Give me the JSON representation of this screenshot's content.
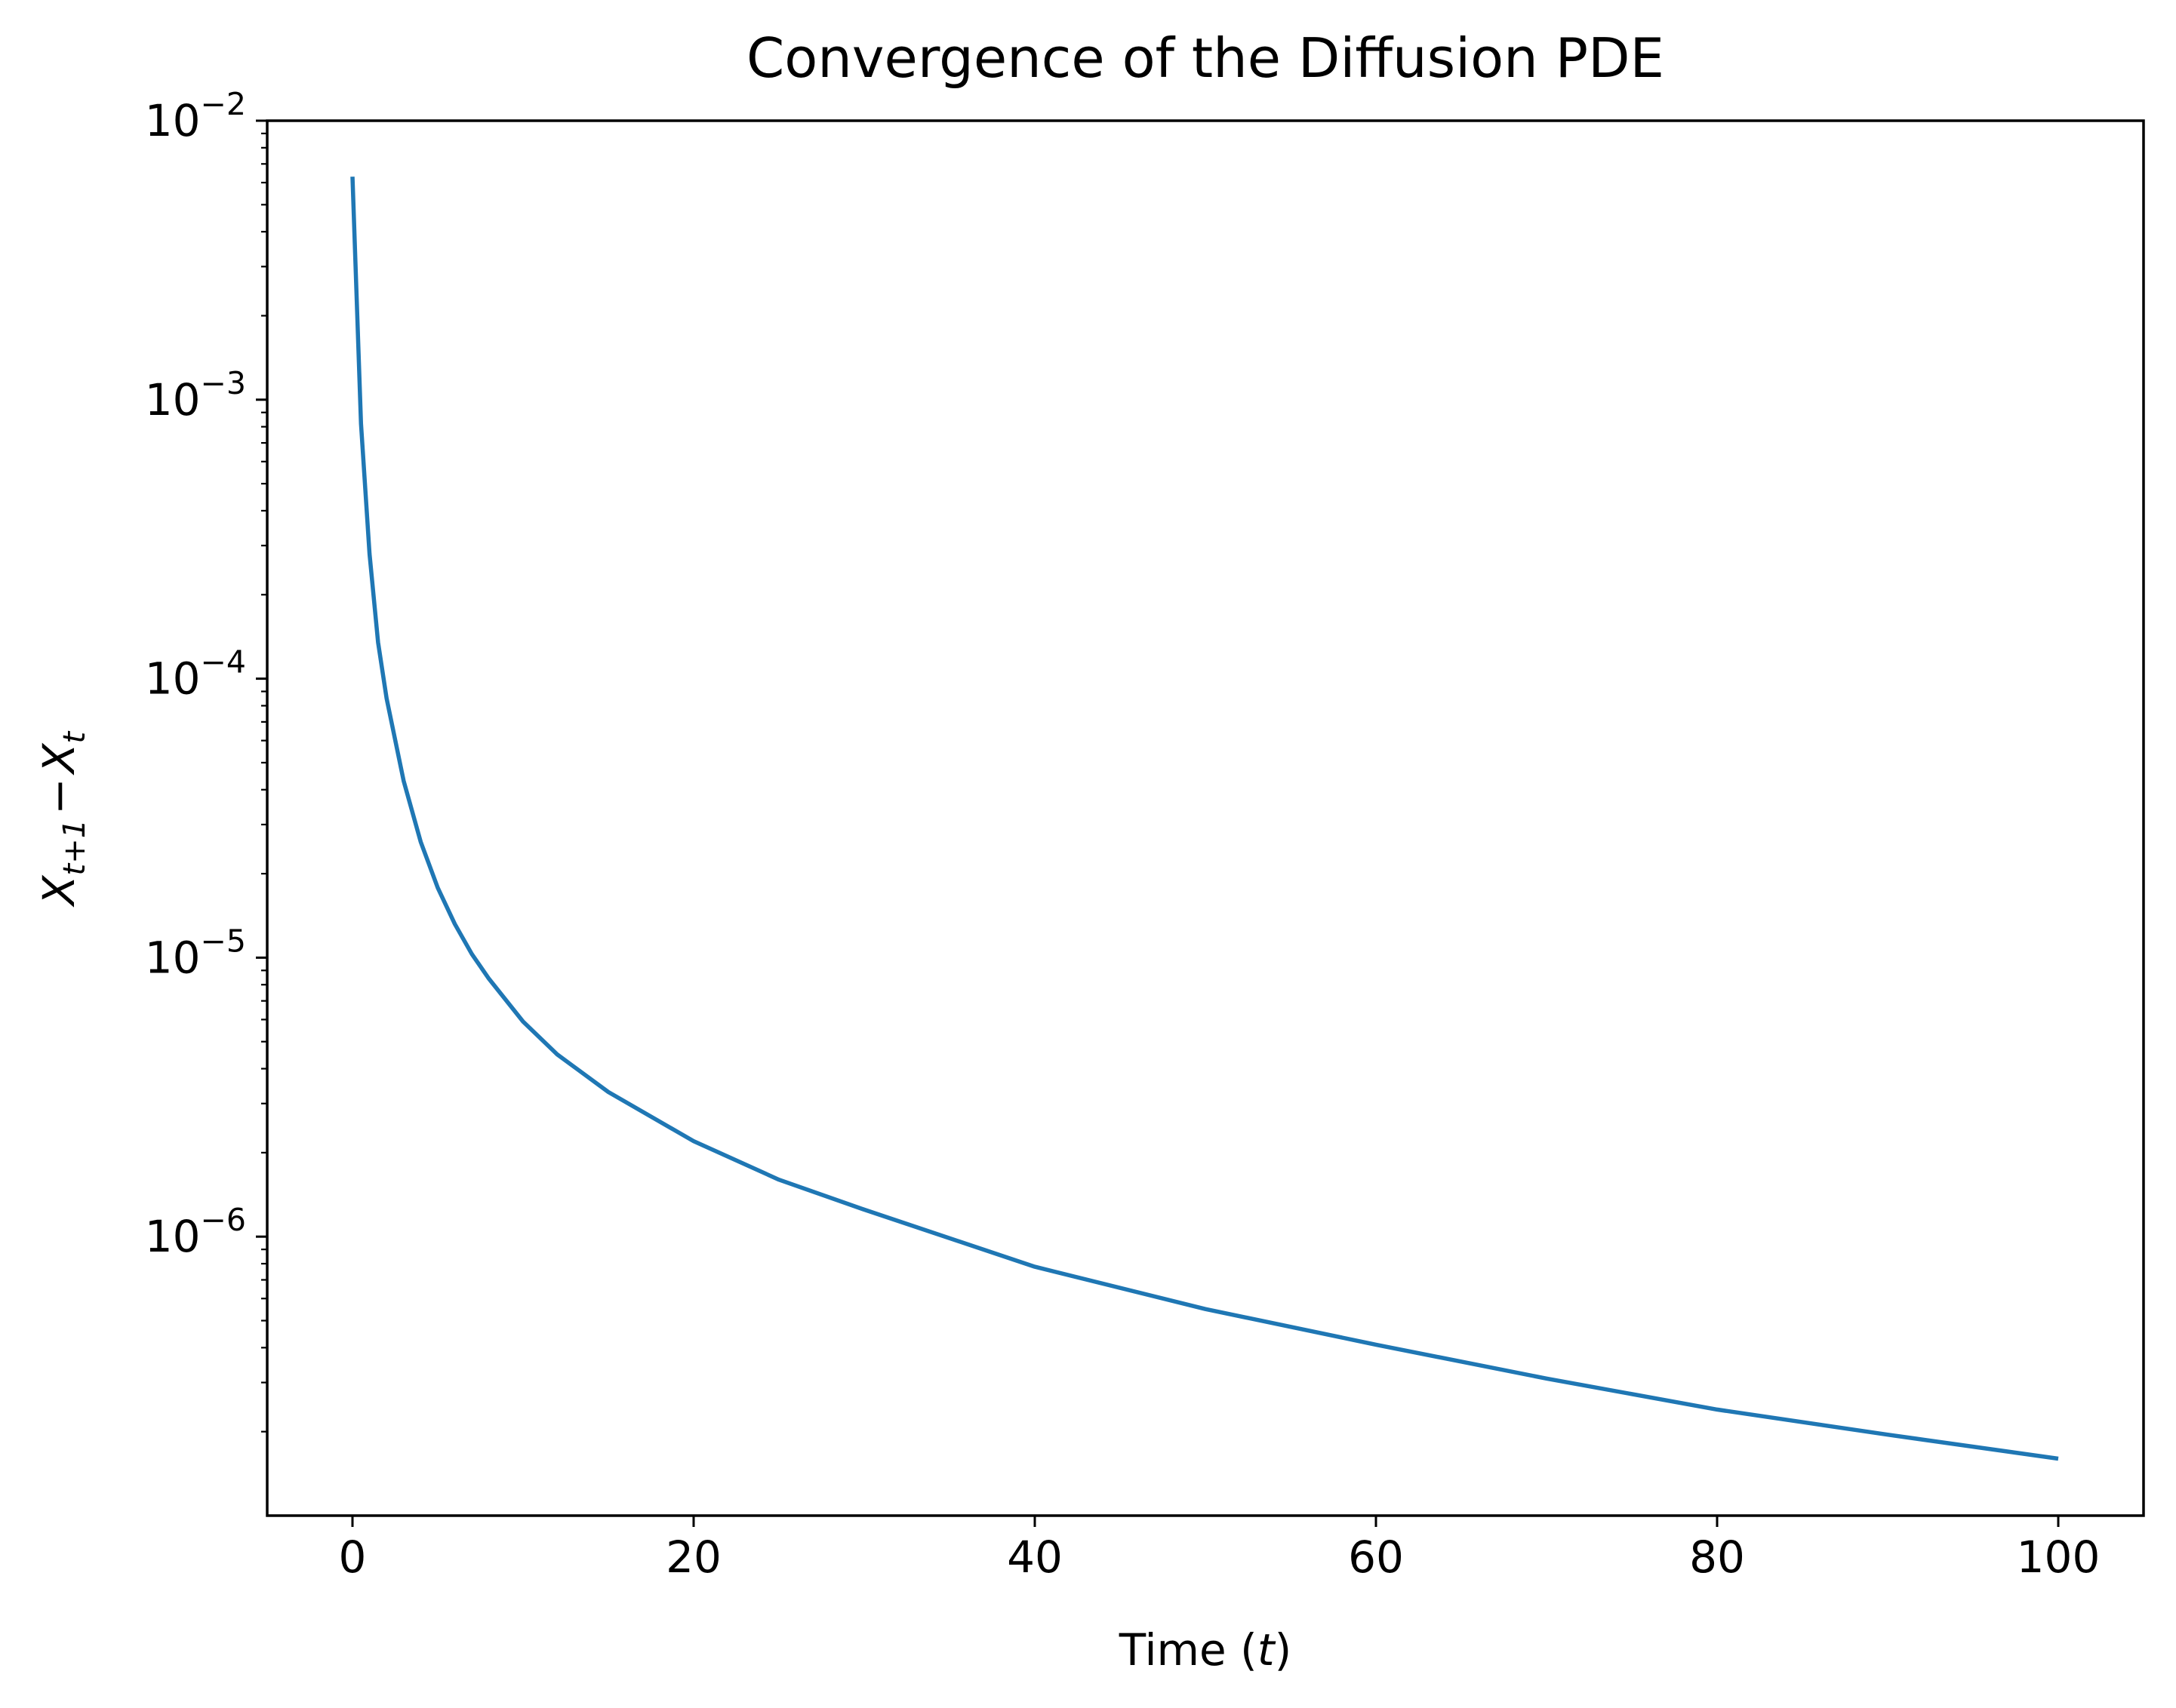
{
  "chart_data": {
    "type": "line",
    "title": "Convergence of the Diffusion PDE",
    "xlabel": {
      "main": "Time (",
      "var": "t",
      "close": ")"
    },
    "ylabel": {
      "x1": "X",
      "sub1": "t+1",
      "minus": "−",
      "x2": "X",
      "sub2": "t"
    },
    "xlim": [
      -5,
      105
    ],
    "ylim": [
      1e-07,
      0.01
    ],
    "yscale": "log",
    "grid": false,
    "x_ticks": [
      {
        "value": 0,
        "label": "0"
      },
      {
        "value": 20,
        "label": "20"
      },
      {
        "value": 40,
        "label": "40"
      },
      {
        "value": 60,
        "label": "60"
      },
      {
        "value": 80,
        "label": "80"
      },
      {
        "value": 100,
        "label": "100"
      }
    ],
    "y_ticks": [
      {
        "value": 0.01,
        "base": "10",
        "exp": "−2"
      },
      {
        "value": 0.001,
        "base": "10",
        "exp": "−3"
      },
      {
        "value": 0.0001,
        "base": "10",
        "exp": "−4"
      },
      {
        "value": 1e-05,
        "base": "10",
        "exp": "−5"
      },
      {
        "value": 1e-06,
        "base": "10",
        "exp": "−6"
      }
    ],
    "series": [
      {
        "color": "#1f77b4",
        "x": [
          0,
          0.5,
          1,
          1.5,
          2,
          3,
          4,
          5,
          6,
          7,
          8,
          10,
          12,
          15,
          20,
          25,
          30,
          40,
          50,
          60,
          70,
          80,
          90,
          100
        ],
        "y": [
          0.0063,
          0.00082,
          0.00028,
          0.000135,
          8.5e-05,
          4.3e-05,
          2.6e-05,
          1.78e-05,
          1.32e-05,
          1.03e-05,
          8.4e-06,
          5.9e-06,
          4.5e-06,
          3.3e-06,
          2.2e-06,
          1.6e-06,
          1.25e-06,
          7.8e-07,
          5.5e-07,
          4.1e-07,
          3.1e-07,
          2.4e-07,
          1.95e-07,
          1.6e-07
        ]
      }
    ]
  }
}
